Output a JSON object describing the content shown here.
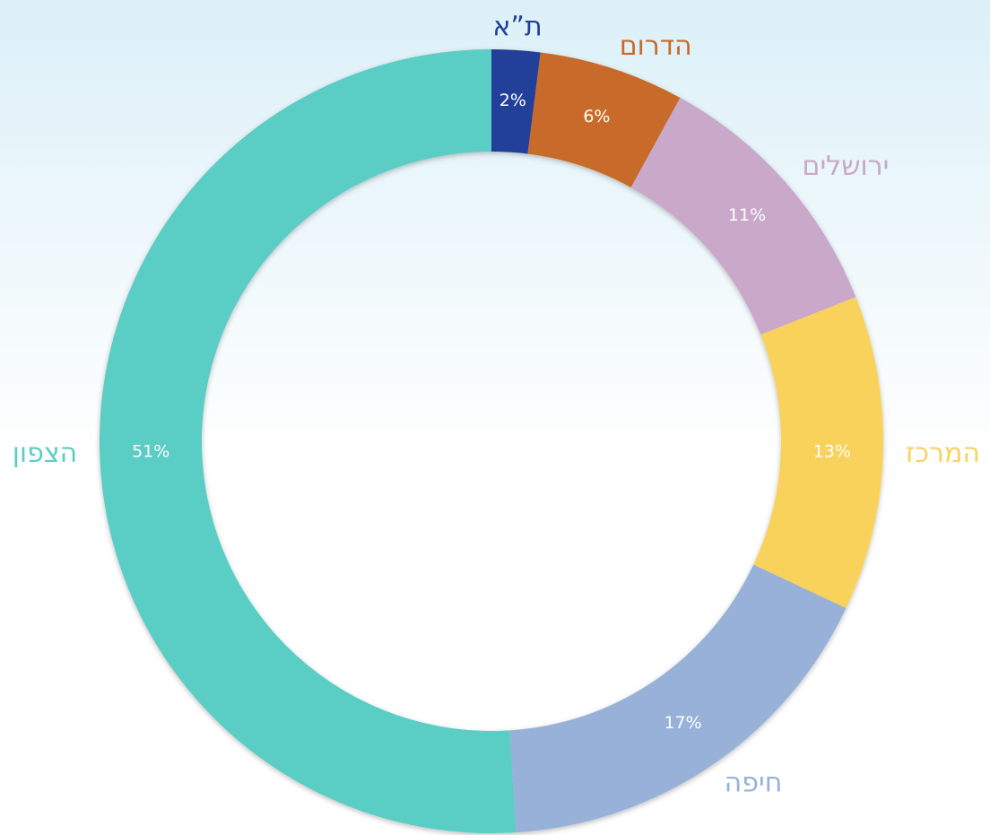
{
  "chart_data": {
    "type": "donut",
    "categories": [
      "ת”א",
      "הדרום",
      "ירושלים",
      "המרכז",
      "חיפה",
      "הצפון"
    ],
    "values": [
      2,
      6,
      11,
      13,
      17,
      51
    ],
    "value_labels": [
      "2%",
      "6%",
      "11%",
      "13%",
      "17%",
      "51%"
    ],
    "colors": [
      "#22409a",
      "#c86a29",
      "#c9a8c9",
      "#f9d25c",
      "#97b1d9",
      "#5acdc5"
    ]
  }
}
